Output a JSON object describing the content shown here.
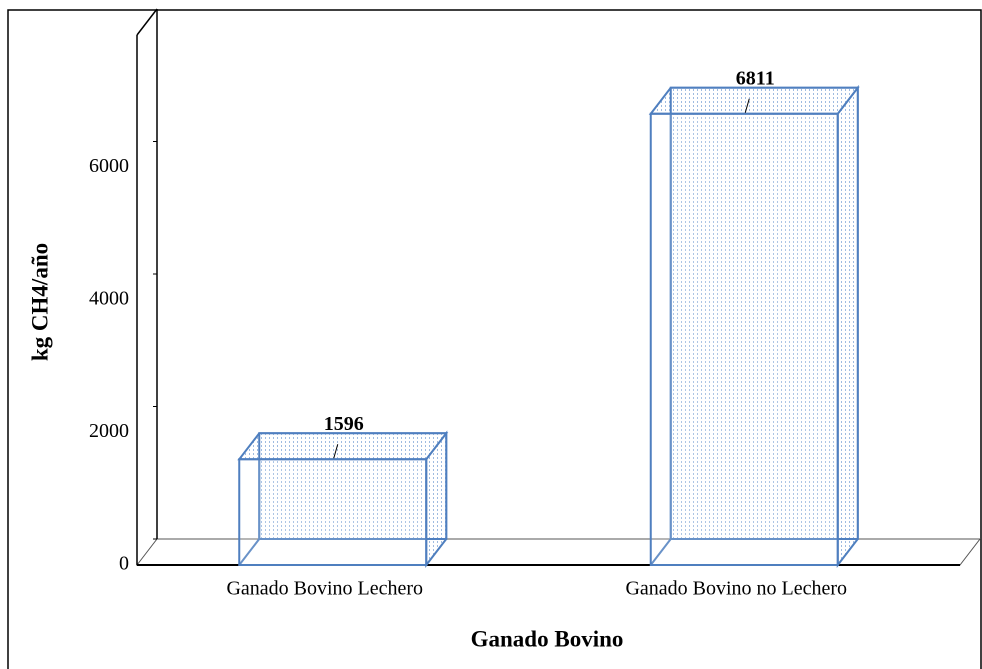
{
  "chart_data": {
    "type": "bar",
    "categories": [
      "Ganado Bovino Lechero",
      "Ganado Bovino no Lechero"
    ],
    "values": [
      1596,
      6811
    ],
    "color": "#4f7fbf",
    "ylim": [
      0,
      8000
    ],
    "yticks": [
      0,
      2000,
      4000,
      6000
    ],
    "x_label": "Ganado Bovino",
    "y_label": "kg CH4/año"
  }
}
